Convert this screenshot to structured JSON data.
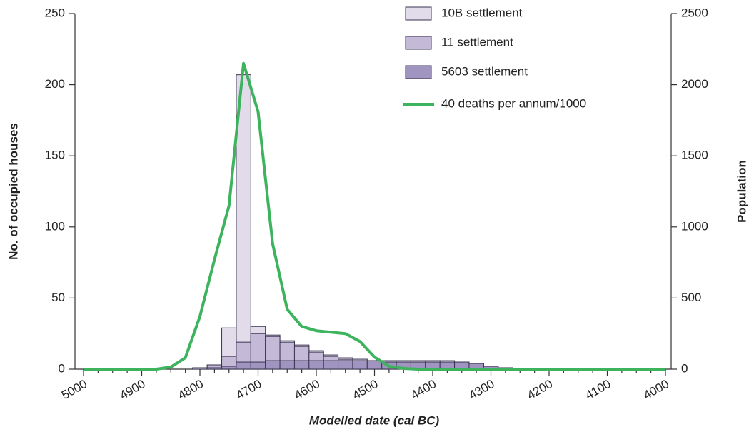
{
  "chart_data": {
    "type": "histogram",
    "xlabel": "Modelled date (cal BC)",
    "ylabel": "No. of occupied houses",
    "y2label": "Population",
    "xlim": [
      5000,
      4000
    ],
    "xticks": [
      5000,
      4900,
      4800,
      4700,
      4600,
      4500,
      4400,
      4300,
      4200,
      4100,
      4000
    ],
    "xminorticks": [
      4975,
      4950,
      4925,
      4875,
      4850,
      4825,
      4775,
      4750,
      4725,
      4675,
      4650,
      4625,
      4575,
      4550,
      4525,
      4475,
      4450,
      4425,
      4375,
      4350,
      4325,
      4275,
      4250,
      4225,
      4175,
      4150,
      4125,
      4075,
      4050,
      4025
    ],
    "ylim": [
      0,
      250
    ],
    "yticks": [
      0,
      50,
      100,
      150,
      200,
      250
    ],
    "y2lim": [
      0,
      2500
    ],
    "y2ticks": [
      0,
      500,
      1000,
      1500,
      2000,
      2500
    ],
    "bins": [
      4812.5,
      4787.5,
      4762.5,
      4737.5,
      4712.5,
      4687.5,
      4662.5,
      4637.5,
      4612.5,
      4587.5,
      4562.5,
      4537.5,
      4512.5,
      4487.5,
      4462.5,
      4437.5,
      4412.5,
      4387.5,
      4362.5,
      4337.5,
      4312.5,
      4287.5,
      4262.5
    ],
    "legend": "top",
    "series": [
      {
        "name": "10B settlement",
        "color": "#e2dcea",
        "values": [
          1,
          3,
          29,
          207,
          30,
          24,
          20,
          17,
          13,
          10,
          8,
          7,
          6,
          6,
          6,
          6,
          6,
          6,
          5,
          4,
          2,
          1
        ]
      },
      {
        "name": "11 settlement",
        "color": "#c4bad7",
        "values": [
          1,
          3,
          9,
          19,
          25,
          23,
          19,
          16,
          12,
          9,
          7,
          6,
          6,
          6,
          6,
          6,
          6,
          5,
          5,
          4,
          2,
          1
        ]
      },
      {
        "name": "5603 settlement",
        "color": "#a094c0",
        "values": [
          0,
          1,
          2,
          5,
          5,
          6,
          6,
          6,
          6,
          6,
          6,
          6,
          6,
          5,
          5,
          5,
          5,
          5,
          5,
          4,
          2,
          1
        ]
      },
      {
        "name": "40 deaths per annum/1000",
        "color": "#3db35e",
        "type": "line",
        "axis": "y2",
        "x": [
          5000,
          4975,
          4950,
          4925,
          4900,
          4875,
          4850,
          4825,
          4800,
          4775,
          4750,
          4725,
          4700,
          4675,
          4650,
          4625,
          4600,
          4575,
          4550,
          4525,
          4500,
          4475,
          4450,
          4425,
          4400,
          4375,
          4350,
          4325,
          4300,
          4275,
          4250,
          4225,
          4200,
          4175,
          4150,
          4125,
          4100,
          4075,
          4050,
          4025,
          4000
        ],
        "values": [
          0,
          0,
          0,
          0,
          0,
          0,
          15,
          80,
          370,
          770,
          1150,
          2150,
          1810,
          880,
          420,
          300,
          270,
          260,
          250,
          195,
          85,
          20,
          5,
          0,
          0,
          0,
          0,
          0,
          0,
          0,
          0,
          0,
          0,
          0,
          0,
          0,
          0,
          0,
          0,
          0,
          0
        ]
      }
    ]
  }
}
